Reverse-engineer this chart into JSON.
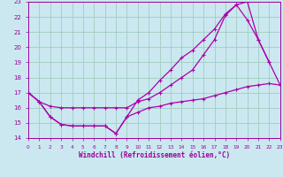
{
  "xlabel": "Windchill (Refroidissement éolien,°C)",
  "xlim": [
    0,
    23
  ],
  "ylim": [
    14,
    23
  ],
  "yticks": [
    14,
    15,
    16,
    17,
    18,
    19,
    20,
    21,
    22,
    23
  ],
  "xticks": [
    0,
    1,
    2,
    3,
    4,
    5,
    6,
    7,
    8,
    9,
    10,
    11,
    12,
    13,
    14,
    15,
    16,
    17,
    18,
    19,
    20,
    21,
    22,
    23
  ],
  "bg_color": "#cbe8f0",
  "grid_color": "#a0ccc0",
  "line_color": "#aa00aa",
  "line1_x": [
    0,
    1,
    2,
    3,
    4,
    5,
    6,
    7,
    8,
    9,
    10,
    11,
    12,
    13,
    14,
    15,
    16,
    17,
    18,
    19,
    20,
    21,
    22
  ],
  "line1_y": [
    17.0,
    16.4,
    16.1,
    16.0,
    16.0,
    16.0,
    16.0,
    16.0,
    16.0,
    16.0,
    16.4,
    16.6,
    17.0,
    17.5,
    18.0,
    18.5,
    19.5,
    20.5,
    22.1,
    22.8,
    23.0,
    20.5,
    19.0
  ],
  "line2_x": [
    0,
    1,
    2,
    3,
    4,
    5,
    6,
    7,
    8,
    9,
    10,
    11,
    12,
    13,
    14,
    15,
    16,
    17,
    18,
    19,
    20,
    21,
    22,
    23
  ],
  "line2_y": [
    17.0,
    16.4,
    15.4,
    14.9,
    14.8,
    14.8,
    14.8,
    14.8,
    14.3,
    15.4,
    16.5,
    17.0,
    17.8,
    18.5,
    19.3,
    19.8,
    20.5,
    21.2,
    22.2,
    22.8,
    21.8,
    20.5,
    19.0,
    17.5
  ],
  "line3_x": [
    0,
    1,
    2,
    3,
    4,
    5,
    6,
    7,
    8,
    9,
    10,
    11,
    12,
    13,
    14,
    15,
    16,
    17,
    18,
    19,
    20,
    21,
    22,
    23
  ],
  "line3_y": [
    17.0,
    16.4,
    15.4,
    14.9,
    14.8,
    14.8,
    14.8,
    14.8,
    14.3,
    15.4,
    15.7,
    16.0,
    16.1,
    16.3,
    16.4,
    16.5,
    16.6,
    16.8,
    17.0,
    17.2,
    17.4,
    17.5,
    17.6,
    17.5
  ]
}
